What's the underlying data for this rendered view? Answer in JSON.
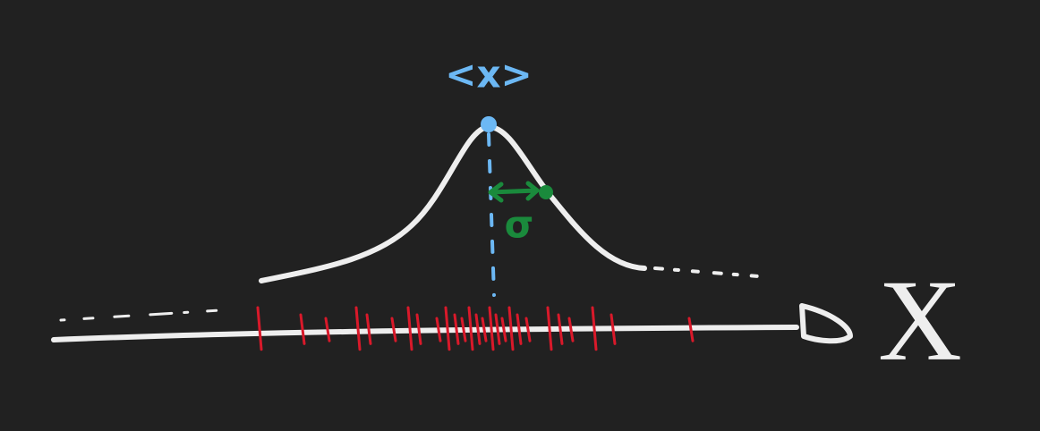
{
  "labels": {
    "mean": "<x>",
    "sigma": "σ",
    "axis": "X"
  }
}
